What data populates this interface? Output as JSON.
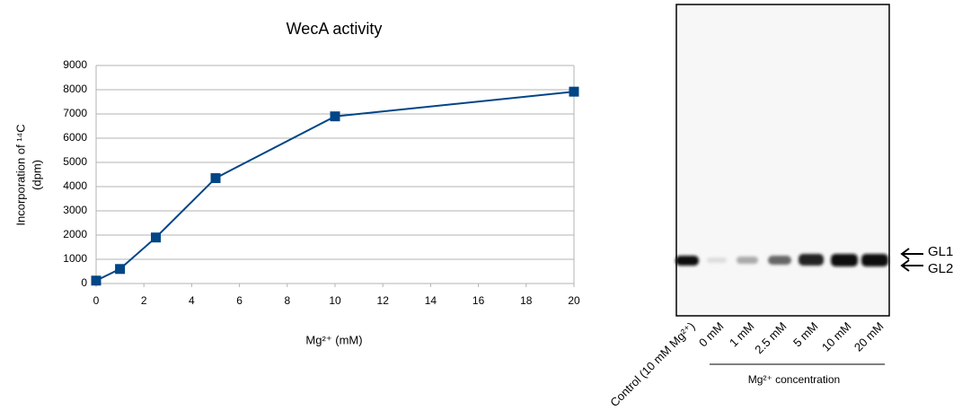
{
  "chart_data": {
    "type": "line",
    "title": "WecA activity",
    "x_label": "Mg²⁺ (mM)",
    "y_label": [
      "Incorporation of ¹⁴C",
      "(dpm)"
    ],
    "x": [
      0,
      1,
      2.5,
      5,
      10,
      20
    ],
    "values": [
      120,
      600,
      1900,
      4350,
      6900,
      7920
    ],
    "color": "#004586",
    "xlim": [
      0,
      20
    ],
    "xticks": [
      0,
      2,
      4,
      6,
      8,
      10,
      12,
      14,
      16,
      18,
      20
    ],
    "ylim": [
      0,
      9000
    ],
    "yticks": [
      0,
      1000,
      2000,
      3000,
      4000,
      5000,
      6000,
      7000,
      8000,
      9000
    ],
    "grid": true
  },
  "gel": {
    "lanes": [
      "Control (10 mM Mg²⁺)",
      "0 mM",
      "1 mM",
      "2.5 mM",
      "5 mM",
      "10 mM",
      "20 mM"
    ],
    "group_label": "Mg²⁺ concentration",
    "bands": [
      "GL1",
      "GL2"
    ]
  }
}
